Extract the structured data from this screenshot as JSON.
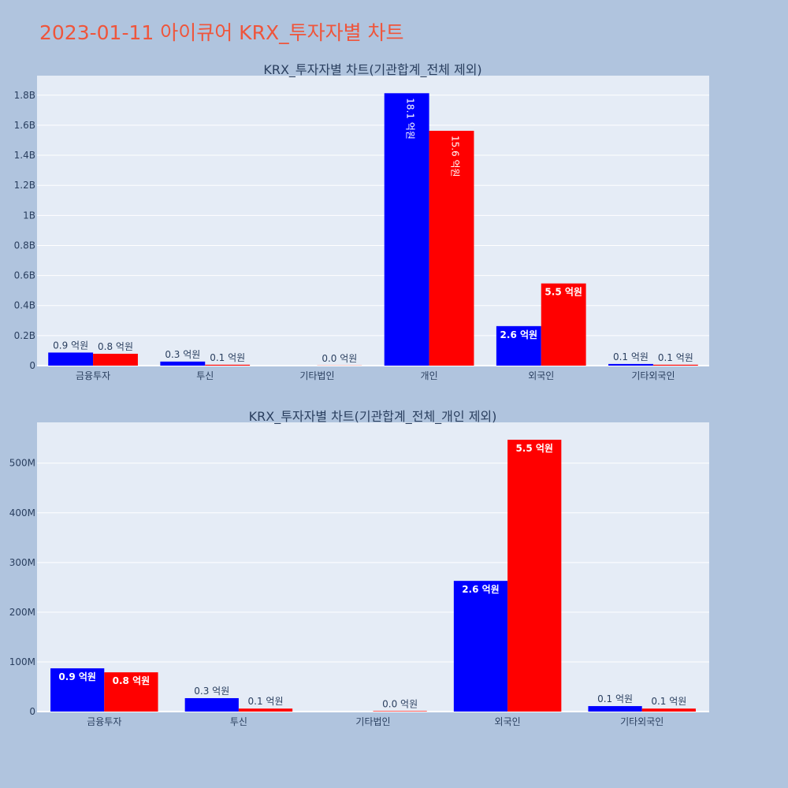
{
  "page": {
    "title": "2023-01-11 아이큐어 KRX_투자자별 차트"
  },
  "colors": {
    "background": "#b0c4de",
    "plot_bg": "#e5ecf6",
    "grid": "#ffffff",
    "title": "#ef553b",
    "text": "#2a3f5f",
    "buy": "#0000ff",
    "sell": "#ff0000"
  },
  "chart_data": [
    {
      "type": "bar",
      "title": "KRX_투자자별 차트(기관합계_전체 제외)",
      "categories": [
        "금융투자",
        "투신",
        "기타법인",
        "개인",
        "외국인",
        "기타외국인"
      ],
      "series": [
        {
          "color": "#0000ff",
          "values": [
            87000000,
            27000000,
            0,
            1813000000,
            263000000,
            11000000
          ],
          "labels": [
            "0.9 억원",
            "0.3 억원",
            "",
            "18.1 억원",
            "2.6 억원",
            "0.1 억원"
          ]
        },
        {
          "color": "#ff0000",
          "values": [
            79000000,
            6000000,
            1000000,
            1563000000,
            547000000,
            6000000
          ],
          "labels": [
            "0.8 억원",
            "0.1 억원",
            "0.0 억원",
            "15.6 억원",
            "5.5 억원",
            "0.1 억원"
          ]
        }
      ],
      "ylim": [
        0,
        1930000000
      ],
      "yticks": [
        0,
        200000000,
        400000000,
        600000000,
        800000000,
        1000000000,
        1200000000,
        1400000000,
        1600000000,
        1800000000
      ],
      "ytick_labels": [
        "0",
        "0.2B",
        "0.4B",
        "0.6B",
        "0.8B",
        "1B",
        "1.2B",
        "1.4B",
        "1.6B",
        "1.8B"
      ],
      "grid": true,
      "xlabel": "",
      "ylabel": ""
    },
    {
      "type": "bar",
      "title": "KRX_투자자별 차트(기관합계_전체_개인 제외)",
      "categories": [
        "금융투자",
        "투신",
        "기타법인",
        "외국인",
        "기타외국인"
      ],
      "series": [
        {
          "color": "#0000ff",
          "values": [
            87000000,
            27000000,
            0,
            263000000,
            11000000
          ],
          "labels": [
            "0.9 억원",
            "0.3 억원",
            "",
            "2.6 억원",
            "0.1 억원"
          ]
        },
        {
          "color": "#ff0000",
          "values": [
            79000000,
            6000000,
            1000000,
            547000000,
            6000000
          ],
          "labels": [
            "0.8 억원",
            "0.1 억원",
            "0.0 억원",
            "5.5 억원",
            "0.1 억원"
          ]
        }
      ],
      "ylim": [
        0,
        582000000
      ],
      "yticks": [
        0,
        100000000,
        200000000,
        300000000,
        400000000,
        500000000
      ],
      "ytick_labels": [
        "0",
        "100M",
        "200M",
        "300M",
        "400M",
        "500M"
      ],
      "grid": true,
      "xlabel": "",
      "ylabel": ""
    }
  ]
}
